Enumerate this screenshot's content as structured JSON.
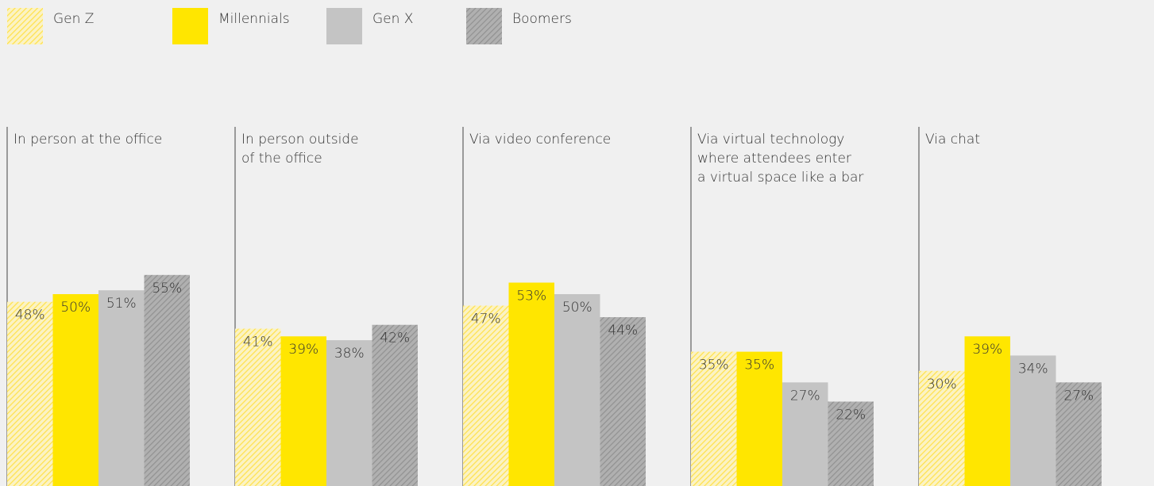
{
  "chart_data": {
    "type": "bar",
    "categories": [
      "In person at the office",
      "In person outside\nof the office",
      "Via video conference",
      "Via virtual technology\nwhere attendees enter\na virtual space like a bar",
      "Via chat"
    ],
    "series": [
      {
        "name": "Gen Z",
        "color": "#ffe600",
        "pattern": "hatch",
        "values": [
          48,
          41,
          47,
          35,
          30
        ],
        "value_labels": [
          "48%",
          "41%",
          "47%",
          "35%",
          "30%"
        ]
      },
      {
        "name": "Millennials",
        "color": "#ffe600",
        "values": [
          50,
          39,
          53,
          35,
          39
        ],
        "value_labels": [
          "50%",
          "39%",
          "53%",
          "35%",
          "39%"
        ]
      },
      {
        "name": "Gen X",
        "color": "#c4c4c4",
        "values": [
          51,
          38,
          50,
          27,
          34
        ],
        "value_labels": [
          "51%",
          "38%",
          "50%",
          "27%",
          "34%"
        ]
      },
      {
        "name": "Boomers",
        "color": "#a3a3a3",
        "pattern": "hatch",
        "values": [
          55,
          42,
          44,
          22,
          27
        ],
        "value_labels": [
          "55%",
          "42%",
          "44%",
          "22%",
          "27%"
        ]
      }
    ]
  }
}
